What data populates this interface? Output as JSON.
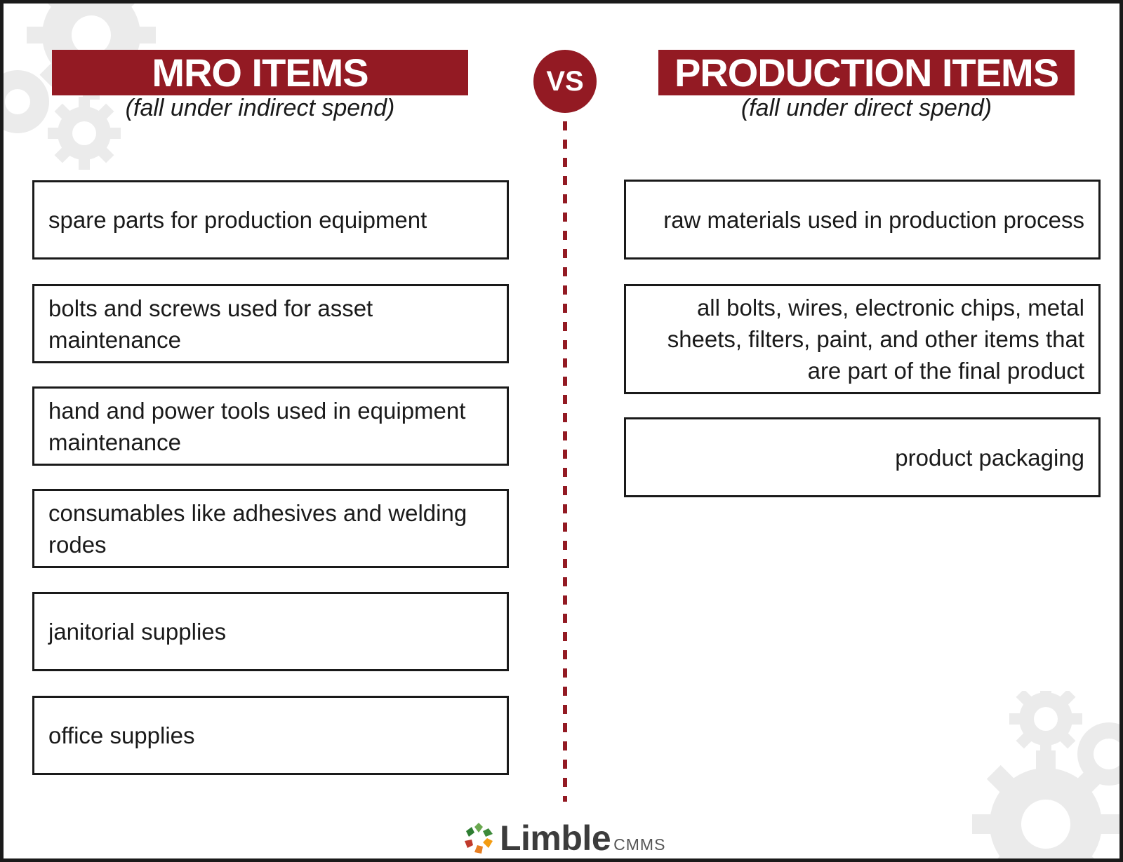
{
  "colors": {
    "accent": "#931a23",
    "gear": "#ebebeb"
  },
  "left": {
    "title": "MRO ITEMS",
    "subtitle": "(fall under indirect spend)",
    "items": [
      "spare parts for production equipment",
      "bolts and screws used for asset maintenance",
      "hand and power tools used in equipment maintenance",
      "consumables like adhesives and welding rodes",
      "janitorial supplies",
      "office supplies"
    ]
  },
  "vs_label": "VS",
  "right": {
    "title": "PRODUCTION ITEMS",
    "subtitle": "(fall under direct spend)",
    "items": [
      "raw materials used in production process",
      "all bolts, wires, electronic chips, metal sheets, filters, paint, and other items that are part of the final product",
      "product packaging"
    ]
  },
  "logo": {
    "name": "Limble",
    "suffix": "CMMS",
    "icon": "gear-logo-icon"
  }
}
